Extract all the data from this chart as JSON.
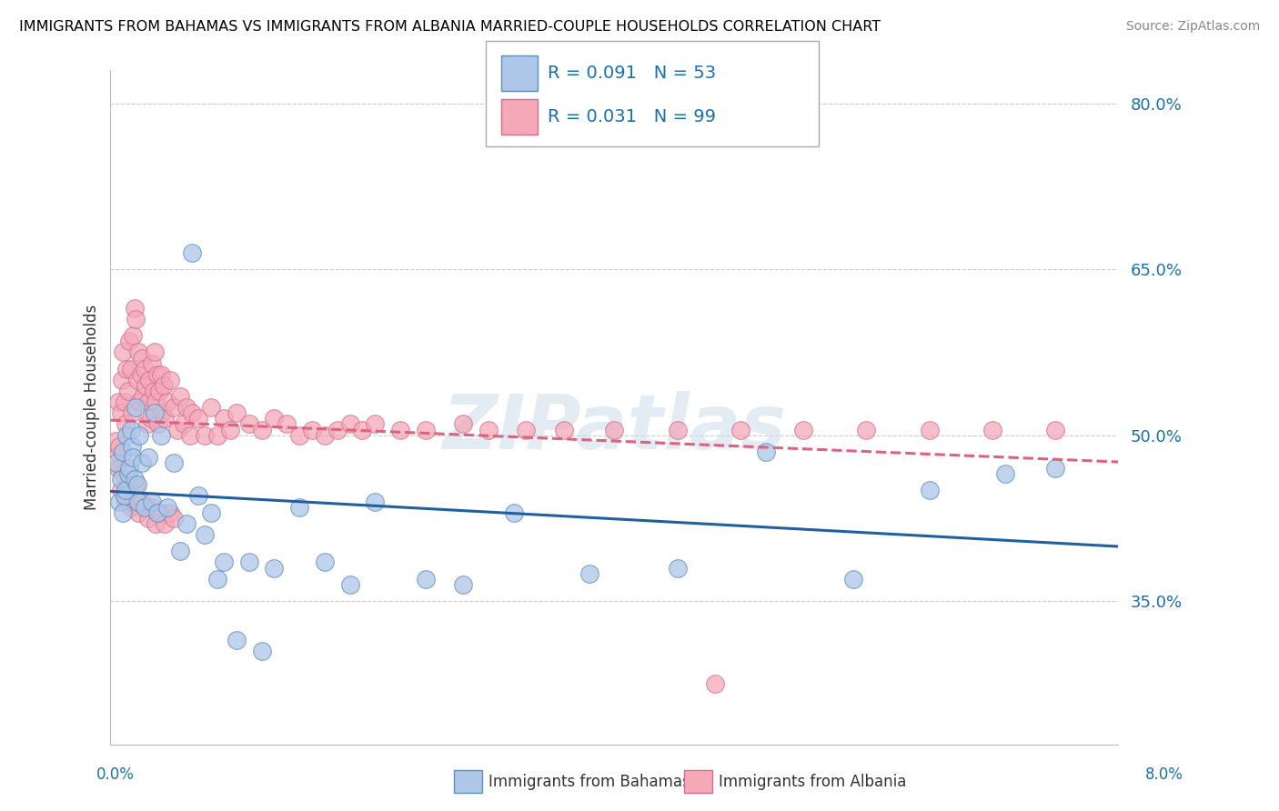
{
  "title": "IMMIGRANTS FROM BAHAMAS VS IMMIGRANTS FROM ALBANIA MARRIED-COUPLE HOUSEHOLDS CORRELATION CHART",
  "source": "Source: ZipAtlas.com",
  "ylabel": "Married-couple Households",
  "ytick_vals": [
    35.0,
    50.0,
    65.0,
    80.0
  ],
  "ytick_labels": [
    "35.0%",
    "50.0%",
    "65.0%",
    "80.0%"
  ],
  "xmin": 0.0,
  "xmax": 8.0,
  "ymin": 22.0,
  "ymax": 83.0,
  "color_bahamas": "#aec6e8",
  "color_albania": "#f4a8b8",
  "edge_bahamas": "#5b8fbe",
  "edge_albania": "#d07090",
  "trendline_bahamas_color": "#2060a0",
  "trendline_albania_color": "#e06080",
  "watermark": "ZIPatlas",
  "bahamas_x": [
    0.05,
    0.07,
    0.08,
    0.1,
    0.1,
    0.11,
    0.12,
    0.13,
    0.14,
    0.15,
    0.16,
    0.17,
    0.18,
    0.19,
    0.2,
    0.21,
    0.22,
    0.23,
    0.25,
    0.27,
    0.3,
    0.33,
    0.35,
    0.37,
    0.4,
    0.45,
    0.5,
    0.55,
    0.6,
    0.65,
    0.7,
    0.75,
    0.8,
    0.85,
    0.9,
    1.0,
    1.1,
    1.2,
    1.3,
    1.5,
    1.7,
    1.9,
    2.1,
    2.5,
    2.8,
    3.2,
    3.8,
    4.5,
    5.2,
    5.9,
    6.5,
    7.1,
    7.5
  ],
  "bahamas_y": [
    47.5,
    44.0,
    46.0,
    48.5,
    43.0,
    44.5,
    45.0,
    50.0,
    46.5,
    47.0,
    50.5,
    49.0,
    48.0,
    46.0,
    52.5,
    45.5,
    44.0,
    50.0,
    47.5,
    43.5,
    48.0,
    44.0,
    52.0,
    43.0,
    50.0,
    43.5,
    47.5,
    39.5,
    42.0,
    66.5,
    44.5,
    41.0,
    43.0,
    37.0,
    38.5,
    31.5,
    38.5,
    30.5,
    38.0,
    43.5,
    38.5,
    36.5,
    44.0,
    37.0,
    36.5,
    43.0,
    37.5,
    38.0,
    48.5,
    37.0,
    45.0,
    46.5,
    47.0
  ],
  "albania_x": [
    0.04,
    0.05,
    0.06,
    0.07,
    0.08,
    0.09,
    0.1,
    0.11,
    0.12,
    0.13,
    0.14,
    0.15,
    0.16,
    0.17,
    0.18,
    0.19,
    0.2,
    0.21,
    0.22,
    0.23,
    0.24,
    0.25,
    0.26,
    0.27,
    0.28,
    0.29,
    0.3,
    0.31,
    0.32,
    0.33,
    0.34,
    0.35,
    0.36,
    0.37,
    0.38,
    0.39,
    0.4,
    0.41,
    0.42,
    0.43,
    0.45,
    0.47,
    0.5,
    0.53,
    0.55,
    0.58,
    0.6,
    0.63,
    0.65,
    0.7,
    0.75,
    0.8,
    0.85,
    0.9,
    0.95,
    1.0,
    1.1,
    1.2,
    1.3,
    1.4,
    1.5,
    1.6,
    1.7,
    1.8,
    1.9,
    2.0,
    2.1,
    2.3,
    2.5,
    2.8,
    3.0,
    3.3,
    3.6,
    4.0,
    4.5,
    5.0,
    5.5,
    6.0,
    6.5,
    7.0,
    7.5,
    0.06,
    0.08,
    0.1,
    0.12,
    0.14,
    0.16,
    0.18,
    0.2,
    0.22,
    0.25,
    0.28,
    0.3,
    0.33,
    0.36,
    0.4,
    0.43,
    0.47,
    0.5,
    4.8
  ],
  "albania_y": [
    49.5,
    48.0,
    53.0,
    49.0,
    52.0,
    55.0,
    57.5,
    53.0,
    51.0,
    56.0,
    54.0,
    58.5,
    56.0,
    52.0,
    59.0,
    61.5,
    60.5,
    55.0,
    57.5,
    53.0,
    55.5,
    57.0,
    53.5,
    56.0,
    54.5,
    51.0,
    53.0,
    55.0,
    51.5,
    56.5,
    54.0,
    57.5,
    53.0,
    55.5,
    51.0,
    54.0,
    55.5,
    52.0,
    54.5,
    51.5,
    53.0,
    55.0,
    52.5,
    50.5,
    53.5,
    51.0,
    52.5,
    50.0,
    52.0,
    51.5,
    50.0,
    52.5,
    50.0,
    51.5,
    50.5,
    52.0,
    51.0,
    50.5,
    51.5,
    51.0,
    50.0,
    50.5,
    50.0,
    50.5,
    51.0,
    50.5,
    51.0,
    50.5,
    50.5,
    51.0,
    50.5,
    50.5,
    50.5,
    50.5,
    50.5,
    50.5,
    50.5,
    50.5,
    50.5,
    50.5,
    50.5,
    47.0,
    45.0,
    46.5,
    44.0,
    45.5,
    43.5,
    44.0,
    45.5,
    43.0,
    44.0,
    43.5,
    42.5,
    43.5,
    42.0,
    43.0,
    42.0,
    43.0,
    42.5,
    27.5
  ]
}
